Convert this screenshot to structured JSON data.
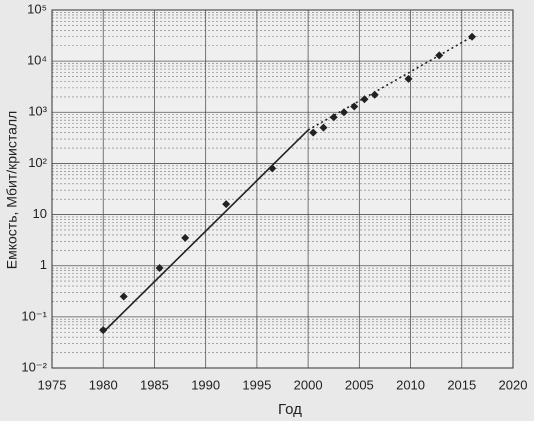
{
  "chart_data": {
    "type": "scatter",
    "xlabel": "Год",
    "ylabel": "Емкость, Мбит/кристалл",
    "xlim": [
      1975,
      2020
    ],
    "xticks": [
      1975,
      1980,
      1985,
      1990,
      1995,
      2000,
      2005,
      2010,
      2015,
      2020
    ],
    "ylim": [
      0.01,
      100000
    ],
    "log_y": true,
    "grid": true,
    "minor_grid": true,
    "yticks": [
      {
        "value": 0.01,
        "label": "10⁻²"
      },
      {
        "value": 0.1,
        "label": "10⁻¹"
      },
      1,
      10,
      {
        "value": 100,
        "label": "10²"
      },
      {
        "value": 1000,
        "label": "10³"
      },
      {
        "value": 10000,
        "label": "10⁴"
      },
      {
        "value": 100000,
        "label": "10⁵"
      }
    ],
    "series": [
      {
        "kind": "markers",
        "color": "#222222",
        "x": [
          1980,
          1982,
          1985.5,
          1988,
          1992,
          1996.5,
          2000.5,
          2001.5,
          2002.5,
          2003.5,
          2004.5,
          2005.5,
          2006.5,
          2009.8,
          2012.8,
          2016
        ],
        "values": [
          0.055,
          0.25,
          0.9,
          3.5,
          16,
          80,
          400,
          500,
          800,
          1000,
          1300,
          1800,
          2200,
          4500,
          13000,
          30000
        ]
      },
      {
        "kind": "solid",
        "color": "#222222",
        "x": [
          1980,
          2000
        ],
        "values": [
          0.05,
          450
        ]
      },
      {
        "kind": "dotted",
        "color": "#222222",
        "x": [
          2000,
          2016
        ],
        "values": [
          450,
          30000
        ]
      }
    ]
  }
}
